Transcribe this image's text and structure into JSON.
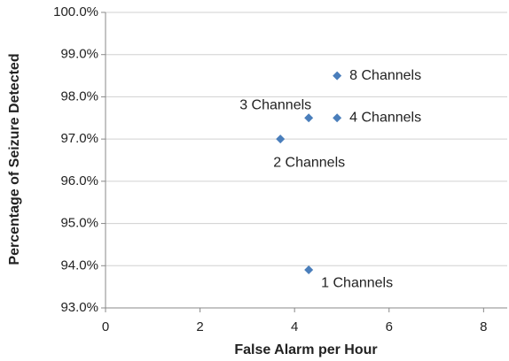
{
  "chart_data": {
    "type": "scatter",
    "x_label": "False Alarm per Hour",
    "y_label": "Percentage of Seizure Detected",
    "series": [
      {
        "color": "#4a7ebb",
        "x": [
          4.3,
          3.7,
          4.3,
          4.9,
          4.9
        ],
        "values": [
          93.9,
          97.0,
          97.5,
          97.5,
          98.5
        ],
        "point_labels": [
          "1 Channels",
          "2 Channels",
          "3 Channels",
          "4 Channels",
          "8 Channels"
        ]
      }
    ],
    "xlim": [
      0,
      8.5
    ],
    "xticks": [
      0,
      2,
      4,
      6,
      8
    ],
    "ylim": [
      93,
      100
    ],
    "yticks": [
      {
        "value": 93,
        "label": "93.0%"
      },
      {
        "value": 94,
        "label": "94.0%"
      },
      {
        "value": 95,
        "label": "95.0%"
      },
      {
        "value": 96,
        "label": "96.0%"
      },
      {
        "value": 97,
        "label": "97.0%"
      },
      {
        "value": 98,
        "label": "98.0%"
      },
      {
        "value": 99,
        "label": "99.0%"
      },
      {
        "value": 100,
        "label": "100.0%"
      }
    ],
    "grid": true
  }
}
